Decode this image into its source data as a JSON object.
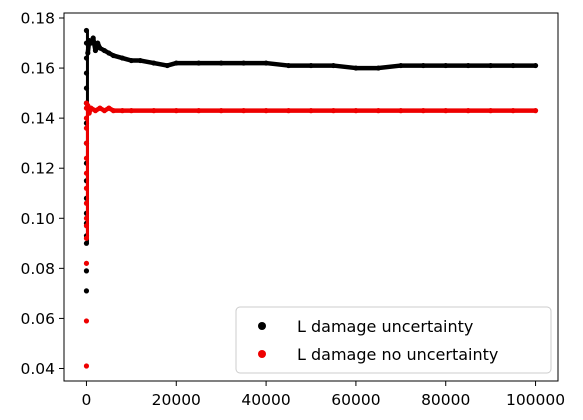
{
  "chart_data": {
    "type": "scatter",
    "title": "",
    "xlabel": "",
    "ylabel": "",
    "xlim": [
      -5000,
      105000
    ],
    "ylim": [
      0.035,
      0.182
    ],
    "grid": false,
    "legend_position": "lower-right",
    "x_ticks": [
      0,
      20000,
      40000,
      60000,
      80000,
      100000
    ],
    "x_tick_labels": [
      "0",
      "20000",
      "40000",
      "60000",
      "80000",
      "100000"
    ],
    "y_ticks": [
      0.04,
      0.06,
      0.08,
      0.1,
      0.12,
      0.14,
      0.16,
      0.18
    ],
    "y_tick_labels": [
      "0.04",
      "0.06",
      "0.08",
      "0.10",
      "0.12",
      "0.14",
      "0.16",
      "0.18"
    ],
    "series": [
      {
        "name": "L damage uncertainty",
        "color": "#000000",
        "marker": "circle",
        "points": [
          [
            0,
            0.071
          ],
          [
            0,
            0.079
          ],
          [
            0,
            0.09
          ],
          [
            0,
            0.093
          ],
          [
            0,
            0.098
          ],
          [
            0,
            0.102
          ],
          [
            0,
            0.108
          ],
          [
            0,
            0.115
          ],
          [
            0,
            0.122
          ],
          [
            0,
            0.13
          ],
          [
            0,
            0.138
          ],
          [
            0,
            0.146
          ],
          [
            0,
            0.152
          ],
          [
            0,
            0.158
          ],
          [
            0,
            0.164
          ],
          [
            0,
            0.17
          ],
          [
            0,
            0.175
          ],
          [
            300,
            0.166
          ],
          [
            600,
            0.171
          ],
          [
            1000,
            0.17
          ],
          [
            1500,
            0.172
          ],
          [
            2000,
            0.167
          ],
          [
            2500,
            0.17
          ],
          [
            3000,
            0.168
          ],
          [
            4000,
            0.167
          ],
          [
            5000,
            0.166
          ],
          [
            6000,
            0.165
          ],
          [
            8000,
            0.164
          ],
          [
            10000,
            0.163
          ],
          [
            12000,
            0.163
          ],
          [
            15000,
            0.162
          ],
          [
            18000,
            0.161
          ],
          [
            20000,
            0.162
          ],
          [
            25000,
            0.162
          ],
          [
            30000,
            0.162
          ],
          [
            35000,
            0.162
          ],
          [
            40000,
            0.162
          ],
          [
            45000,
            0.161
          ],
          [
            50000,
            0.161
          ],
          [
            55000,
            0.161
          ],
          [
            60000,
            0.16
          ],
          [
            65000,
            0.16
          ],
          [
            70000,
            0.161
          ],
          [
            75000,
            0.161
          ],
          [
            80000,
            0.161
          ],
          [
            85000,
            0.161
          ],
          [
            90000,
            0.161
          ],
          [
            95000,
            0.161
          ],
          [
            100000,
            0.161
          ]
        ]
      },
      {
        "name": "L damage no uncertainty",
        "color": "#ee0000",
        "marker": "circle",
        "points": [
          [
            0,
            0.041
          ],
          [
            0,
            0.059
          ],
          [
            0,
            0.082
          ],
          [
            0,
            0.092
          ],
          [
            0,
            0.097
          ],
          [
            0,
            0.1
          ],
          [
            0,
            0.106
          ],
          [
            0,
            0.112
          ],
          [
            0,
            0.118
          ],
          [
            0,
            0.124
          ],
          [
            0,
            0.13
          ],
          [
            0,
            0.136
          ],
          [
            0,
            0.14
          ],
          [
            0,
            0.144
          ],
          [
            0,
            0.146
          ],
          [
            300,
            0.145
          ],
          [
            600,
            0.142
          ],
          [
            1000,
            0.144
          ],
          [
            2000,
            0.143
          ],
          [
            3000,
            0.144
          ],
          [
            4000,
            0.143
          ],
          [
            5000,
            0.144
          ],
          [
            6000,
            0.143
          ],
          [
            8000,
            0.143
          ],
          [
            10000,
            0.143
          ],
          [
            15000,
            0.143
          ],
          [
            20000,
            0.143
          ],
          [
            25000,
            0.143
          ],
          [
            30000,
            0.143
          ],
          [
            35000,
            0.143
          ],
          [
            40000,
            0.143
          ],
          [
            45000,
            0.143
          ],
          [
            50000,
            0.143
          ],
          [
            55000,
            0.143
          ],
          [
            60000,
            0.143
          ],
          [
            65000,
            0.143
          ],
          [
            70000,
            0.143
          ],
          [
            75000,
            0.143
          ],
          [
            80000,
            0.143
          ],
          [
            85000,
            0.143
          ],
          [
            90000,
            0.143
          ],
          [
            95000,
            0.143
          ],
          [
            100000,
            0.143
          ]
        ]
      }
    ]
  }
}
